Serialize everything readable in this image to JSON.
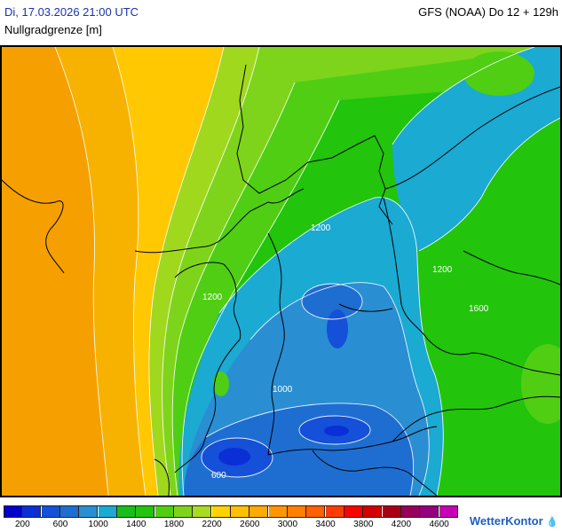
{
  "header": {
    "datetime": "Di, 17.03.2026 21:00 UTC",
    "parameter": "Nullgradgrenze [m]",
    "model_run": "GFS (NOAA) Do 12 + 129h"
  },
  "map": {
    "contour_labels": [
      "1200",
      "1200",
      "1200",
      "1600",
      "1000",
      "600"
    ]
  },
  "legend": {
    "colors": [
      "#0000c8",
      "#0a2fd6",
      "#1450d8",
      "#1e6ed2",
      "#2a8ed2",
      "#1aaad2",
      "#19be18",
      "#22c40c",
      "#4fce14",
      "#7ed41a",
      "#a8dc20",
      "#ffd200",
      "#ffc000",
      "#ffaa00",
      "#ff9600",
      "#ff7f00",
      "#ff6000",
      "#ff3c00",
      "#ff0000",
      "#d40000",
      "#aa0014",
      "#96005a",
      "#96007d",
      "#c800b4"
    ],
    "ticks": [
      "200",
      "600",
      "1000",
      "1400",
      "1800",
      "2200",
      "2600",
      "3000",
      "3400",
      "3800",
      "4200",
      "4600"
    ]
  },
  "logo": {
    "text": "WetterKontor",
    "icon": "weather-drop-icon"
  }
}
